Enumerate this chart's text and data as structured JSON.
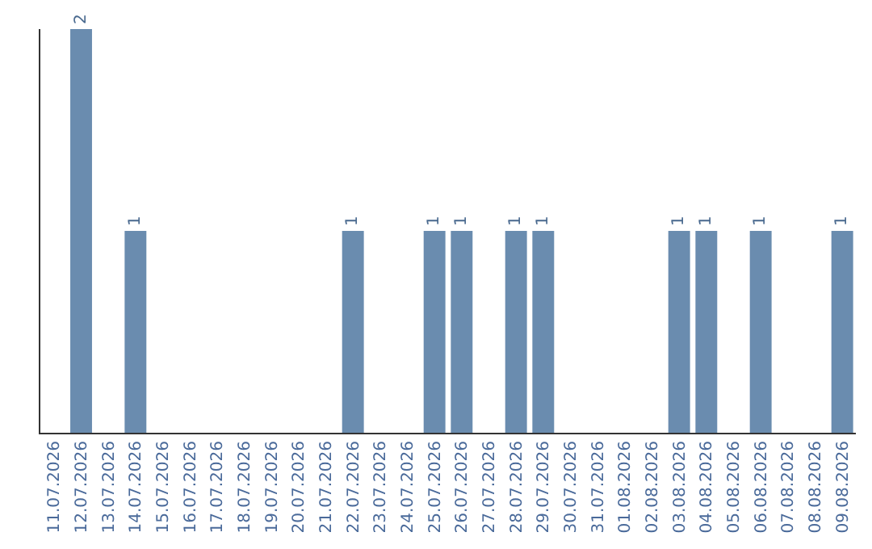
{
  "chart_data": {
    "type": "bar",
    "categories": [
      "11.07.2026",
      "12.07.2026",
      "13.07.2026",
      "14.07.2026",
      "15.07.2026",
      "16.07.2026",
      "17.07.2026",
      "18.07.2026",
      "19.07.2026",
      "20.07.2026",
      "21.07.2026",
      "22.07.2026",
      "23.07.2026",
      "24.07.2026",
      "25.07.2026",
      "26.07.2026",
      "27.07.2026",
      "28.07.2026",
      "29.07.2026",
      "30.07.2026",
      "31.07.2026",
      "01.08.2026",
      "02.08.2026",
      "03.08.2026",
      "04.08.2026",
      "05.08.2026",
      "06.08.2026",
      "07.08.2026",
      "08.08.2026",
      "09.08.2026"
    ],
    "values": [
      0,
      2,
      0,
      1,
      0,
      0,
      0,
      0,
      0,
      0,
      0,
      1,
      0,
      0,
      1,
      1,
      0,
      1,
      1,
      0,
      0,
      0,
      0,
      1,
      1,
      0,
      1,
      0,
      0,
      1
    ],
    "value_labels": [
      null,
      "2",
      null,
      "1",
      null,
      null,
      null,
      null,
      null,
      null,
      null,
      "1",
      null,
      null,
      "1",
      "1",
      null,
      "1",
      "1",
      null,
      null,
      null,
      null,
      "1",
      "1",
      null,
      "1",
      null,
      null,
      "1"
    ],
    "color": "#6a8caf"
  }
}
